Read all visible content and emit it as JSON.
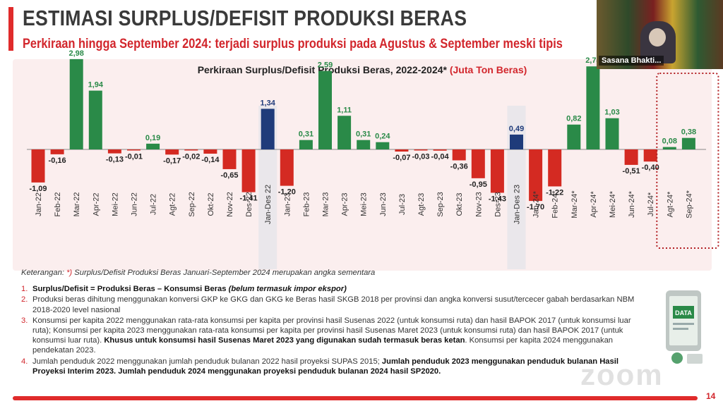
{
  "header": {
    "title": "ESTIMASI SURPLUS/DEFISIT PRODUKSI BERAS",
    "subtitle": "Perkiraan hingga September 2024: terjadi surplus produksi pada Agustus & September meski tipis"
  },
  "video": {
    "participant_name": "Sasana Bhakti..."
  },
  "chart_data": {
    "type": "bar",
    "title": "Perkiraan Surplus/Defisit Produksi Beras, 2022-2024*",
    "title_unit": "(Juta Ton Beras)",
    "categories": [
      "Jan-22",
      "Feb-22",
      "Mar-22",
      "Apr-22",
      "Mei-22",
      "Jun-22",
      "Jul-22",
      "Agt-22",
      "Sep-22",
      "Okt-22",
      "Nov-22",
      "Des-22",
      "Jan-Des 22",
      "Jan-23",
      "Feb-23",
      "Mar-23",
      "Apr-23",
      "Mei-23",
      "Jun-23",
      "Jul-23",
      "Agt-23",
      "Sep-23",
      "Okt-23",
      "Nov-23",
      "Des-23",
      "Jan-Des 23",
      "Jan-24*",
      "Feb-24*",
      "Mar-24*",
      "Apr-24*",
      "Mei-24*",
      "Jun-24*",
      "Jul-24*",
      "Agt-24*",
      "Sep-24*"
    ],
    "values": [
      -1.09,
      -0.16,
      2.98,
      1.94,
      -0.13,
      -0.01,
      0.19,
      -0.17,
      -0.02,
      -0.14,
      -0.65,
      -1.41,
      1.34,
      -1.2,
      0.31,
      2.59,
      1.11,
      0.31,
      0.24,
      -0.07,
      -0.03,
      -0.04,
      -0.36,
      -0.95,
      -1.43,
      0.49,
      -1.7,
      -1.22,
      0.82,
      2.74,
      1.03,
      -0.51,
      -0.4,
      0.08,
      0.38
    ],
    "labels": [
      "-1,09",
      "-0,16",
      "2,98",
      "1,94",
      "-0,13",
      "-0,01",
      "0,19",
      "-0,17",
      "-0,02",
      "-0,14",
      "-0,65",
      "-1,41",
      "1,34",
      "-1,20",
      "0,31",
      "2,59",
      "1,11",
      "0,31",
      "0,24",
      "-0,07",
      "-0,03",
      "-0,04",
      "-0,36",
      "-0,95",
      "-1,43",
      "0,49",
      "-1,70",
      "-1,22",
      "0,82",
      "2,74",
      "1,03",
      "-0,51",
      "-0,40",
      "0,08",
      "0,38"
    ],
    "annual_totals": [
      "Jan-Des 22",
      "Jan-Des 23"
    ],
    "highlighted": [
      "Agt-24*",
      "Sep-24*"
    ],
    "colors": {
      "surplus": "#2a8a48",
      "deficit": "#d42a22",
      "annual": "#1f3b7a",
      "title_unit": "#d2262c"
    },
    "ylim": [
      -1.9,
      3.1
    ],
    "xlabel": "",
    "ylabel": "",
    "grid": false
  },
  "notes": {
    "keterangan_prefix": "Keterangan: ",
    "keterangan_star": "*)",
    "keterangan_text": " Surplus/Defisit Produksi Beras Januari-September 2024 merupakan angka sementara",
    "items": [
      {
        "num": "1.",
        "bold": "Surplus/Defisit = Produksi Beras – Konsumsi Beras ",
        "boldItalic": "(belum termasuk impor ekspor)"
      },
      {
        "num": "2.",
        "text": "Produksi beras dihitung menggunakan konversi GKP ke GKG dan GKG ke Beras hasil SKGB 2018 per provinsi dan angka konversi susut/tercecer gabah berdasarkan NBM 2018-2020 level nasional"
      },
      {
        "num": "3.",
        "text": "Konsumsi per kapita 2022 menggunakan rata-rata konsumsi per kapita per provinsi hasil Susenas 2022 (untuk konsumsi ruta) dan hasil BAPOK 2017 (untuk konsumsi luar ruta); Konsumsi per kapita 2023 menggunakan rata-rata konsumsi per kapita per provinsi hasil Susenas Maret 2023 (untuk konsumsi ruta) dan hasil BAPOK 2017 (untuk konsumsi luar ruta). ",
        "bold": "Khusus untuk konsumsi hasil Susenas Maret 2023 yang digunakan sudah termasuk beras ketan",
        "tail": ". Konsumsi per kapita 2024 menggunakan pendekatan 2023."
      },
      {
        "num": "4.",
        "text": "Jumlah penduduk 2022 menggunakan jumlah penduduk bulanan 2022 hasil proyeksi SUPAS 2015; ",
        "bold": "Jumlah penduduk 2023 menggunakan penduduk bulanan Hasil Proyeksi Interim 2023. Jumlah penduduk 2024 menggunakan proyeksi penduduk bulanan 2024 hasil SP2020."
      }
    ]
  },
  "watermark": "zoom",
  "illustration_label": "DATA",
  "page_number": "14"
}
